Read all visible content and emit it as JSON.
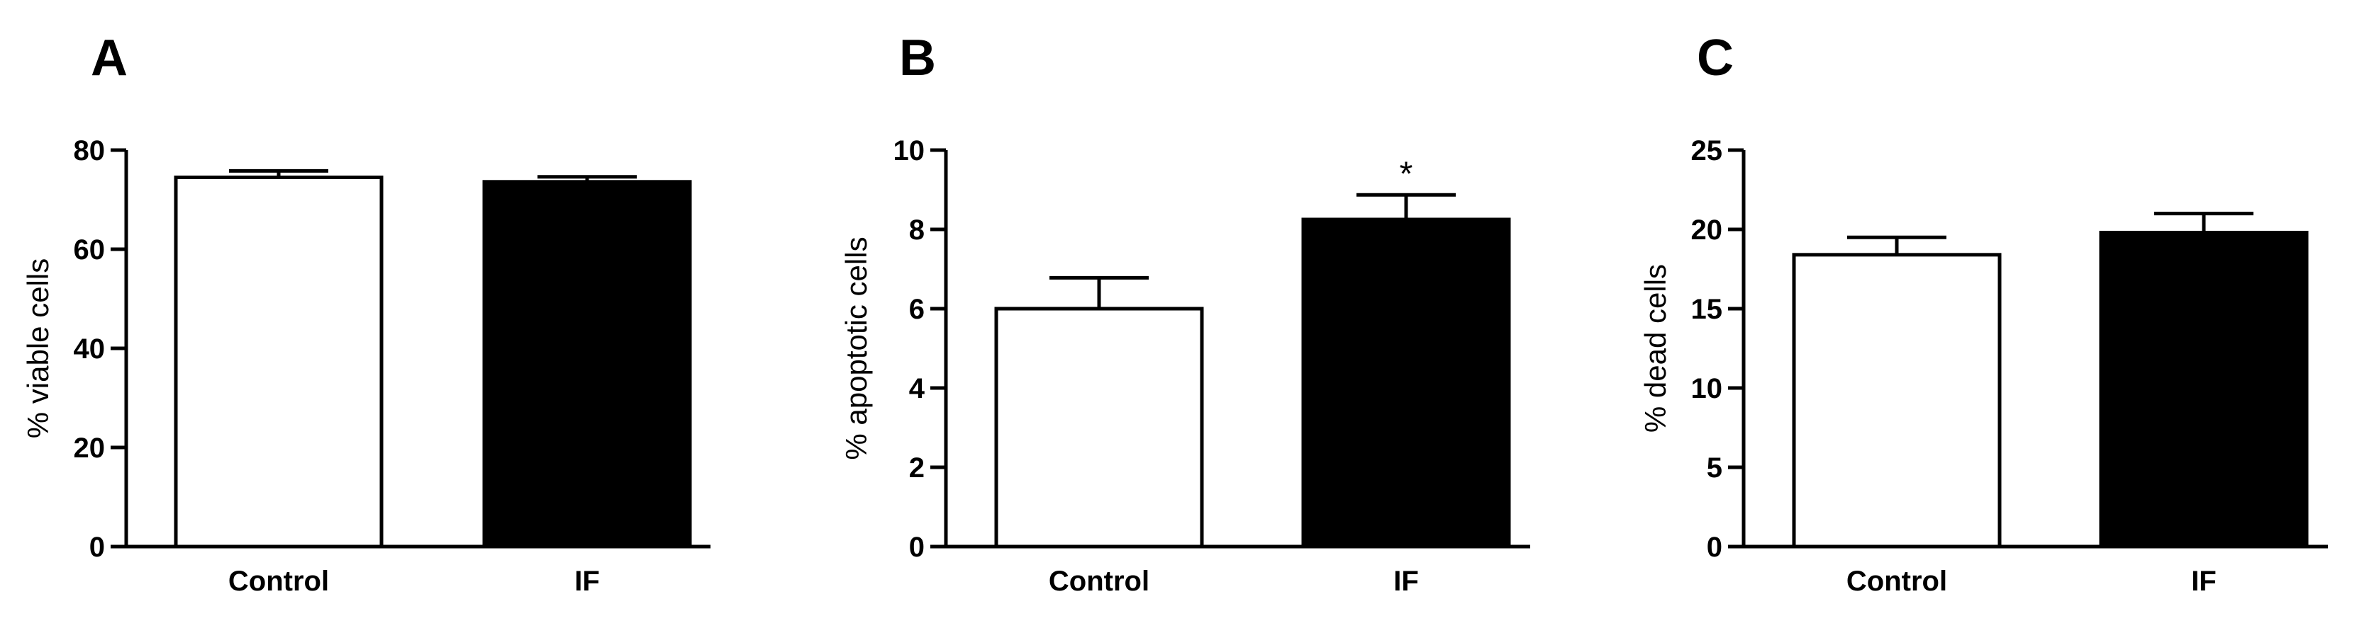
{
  "chart_data": [
    {
      "panel": "A",
      "type": "bar",
      "categories": [
        "Control",
        "IF"
      ],
      "values": [
        74.5,
        73.6
      ],
      "errors": [
        1.3,
        1.0
      ],
      "colors": [
        "#ffffff",
        "#000000"
      ],
      "ylabel": "% viable cells",
      "ylim": [
        0,
        80
      ],
      "yticks": [
        0,
        20,
        40,
        60,
        80
      ],
      "annotations": [
        "",
        ""
      ]
    },
    {
      "panel": "B",
      "type": "bar",
      "categories": [
        "Control",
        "IF"
      ],
      "values": [
        6.0,
        8.25
      ],
      "errors": [
        0.78,
        0.62
      ],
      "colors": [
        "#ffffff",
        "#000000"
      ],
      "ylabel": "% apoptotic cells",
      "ylim": [
        0,
        10
      ],
      "yticks": [
        0,
        2,
        4,
        6,
        8,
        10
      ],
      "annotations": [
        "",
        "*"
      ]
    },
    {
      "panel": "C",
      "type": "bar",
      "categories": [
        "Control",
        "IF"
      ],
      "values": [
        18.4,
        19.8
      ],
      "errors": [
        1.1,
        1.2
      ],
      "colors": [
        "#ffffff",
        "#000000"
      ],
      "ylabel": "% dead cells",
      "ylim": [
        0,
        25
      ],
      "yticks": [
        0,
        5,
        10,
        15,
        20,
        25
      ],
      "annotations": [
        "",
        ""
      ]
    }
  ]
}
